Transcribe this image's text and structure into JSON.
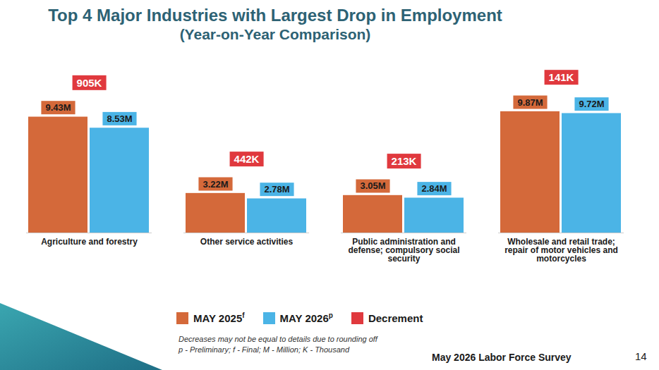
{
  "chart_data": {
    "type": "bar",
    "title": "Top 4 Major Industries with Largest Drop in Employment",
    "subtitle": "(Year-on-Year Comparison)",
    "categories": [
      "Agriculture and forestry",
      "Other service activities",
      "Public administration and defense; compulsory social security",
      "Wholesale and retail trade; repair of motor vehicles and motorcycles"
    ],
    "series": [
      {
        "name": "MAY 2025",
        "superscript": "f",
        "color": "#D4693A",
        "values": [
          9.43,
          3.22,
          3.05,
          9.87
        ],
        "value_labels": [
          "9.43M",
          "3.22M",
          "3.05M",
          "9.87M"
        ]
      },
      {
        "name": "MAY 2026",
        "superscript": "p",
        "color": "#4BB4E6",
        "values": [
          8.53,
          2.78,
          2.84,
          9.72
        ],
        "value_labels": [
          "8.53M",
          "2.78M",
          "2.84M",
          "9.72M"
        ]
      }
    ],
    "decrement": {
      "name": "Decrement",
      "color": "#E0393E",
      "values": [
        0.905,
        0.442,
        0.213,
        0.141
      ],
      "value_labels": [
        "905K",
        "442K",
        "213K",
        "141K"
      ]
    },
    "ylim": [
      0,
      12.5
    ],
    "grid": false,
    "legend": "bottom",
    "data_labels": true,
    "tick_labels": "x",
    "notes": [
      "Decreases may not be equal to details due to rounding off",
      "p - Preliminary; f - Final; M - Million; K - Thousand"
    ],
    "footer": "May 2026 Labor Force Survey",
    "page": "14"
  }
}
